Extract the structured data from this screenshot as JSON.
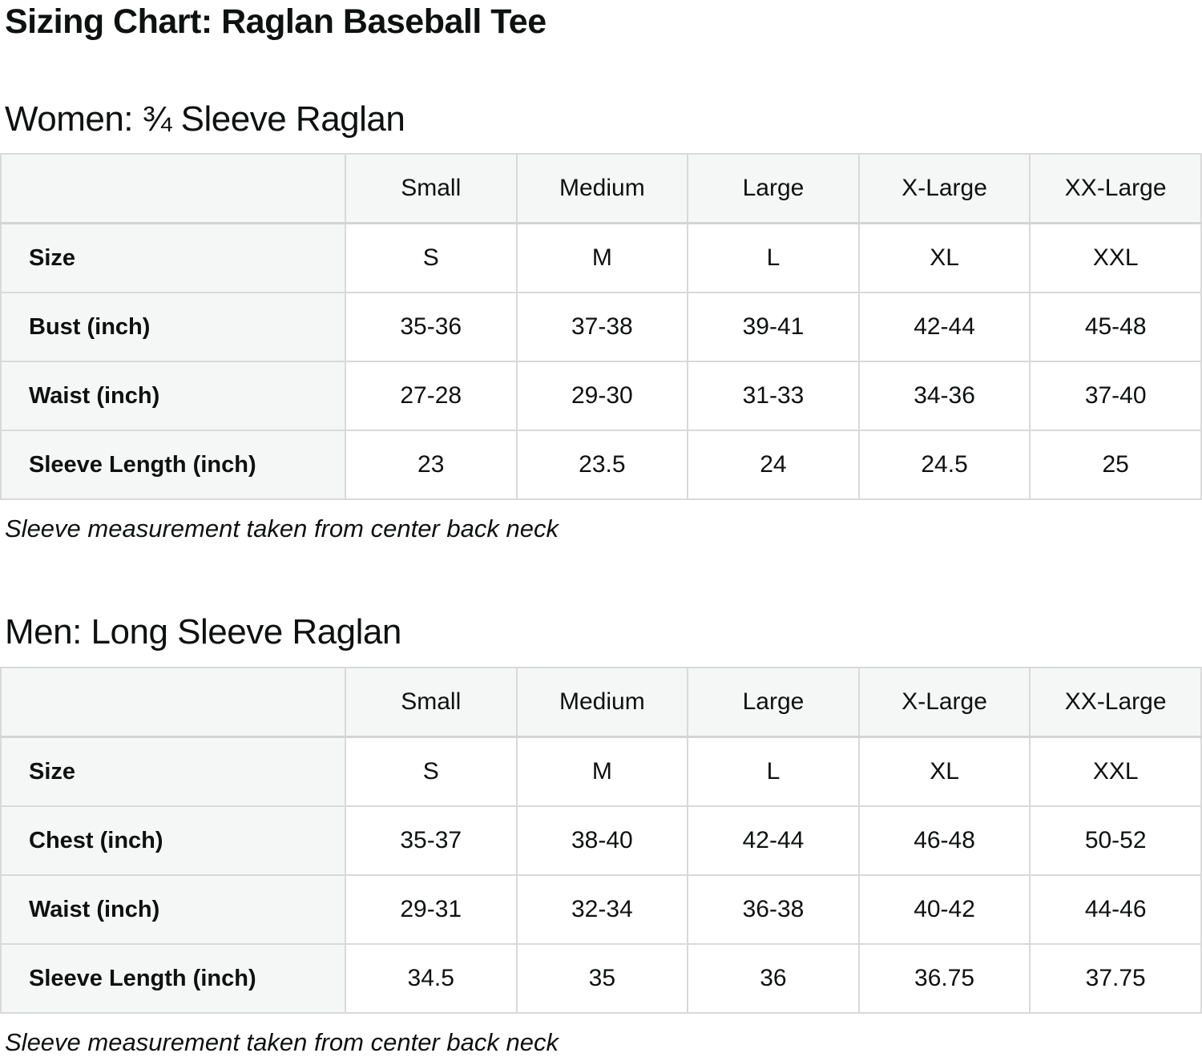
{
  "page": {
    "title": "Sizing Chart: Raglan Baseball Tee"
  },
  "colors": {
    "header_bg": "#f5f6f6",
    "border": "#d9d9d9",
    "text": "#0f1111",
    "background": "#ffffff"
  },
  "sections": [
    {
      "heading": "Women: ¾ Sleeve Raglan",
      "note": "Sleeve measurement taken from center back neck",
      "table": {
        "corner": "",
        "col_headers": [
          "Small",
          "Medium",
          "Large",
          "X-Large",
          "XX-Large"
        ],
        "rows": [
          {
            "label": "Size",
            "values": [
              "S",
              "M",
              "L",
              "XL",
              "XXL"
            ]
          },
          {
            "label": "Bust (inch)",
            "values": [
              "35-36",
              "37-38",
              "39-41",
              "42-44",
              "45-48"
            ]
          },
          {
            "label": "Waist (inch)",
            "values": [
              "27-28",
              "29-30",
              "31-33",
              "34-36",
              "37-40"
            ]
          },
          {
            "label": "Sleeve Length (inch)",
            "values": [
              "23",
              "23.5",
              "24",
              "24.5",
              "25"
            ]
          }
        ]
      }
    },
    {
      "heading": "Men: Long Sleeve Raglan",
      "note": "Sleeve measurement taken from center back neck",
      "table": {
        "corner": "",
        "col_headers": [
          "Small",
          "Medium",
          "Large",
          "X-Large",
          "XX-Large"
        ],
        "rows": [
          {
            "label": "Size",
            "values": [
              "S",
              "M",
              "L",
              "XL",
              "XXL"
            ]
          },
          {
            "label": "Chest (inch)",
            "values": [
              "35-37",
              "38-40",
              "42-44",
              "46-48",
              "50-52"
            ]
          },
          {
            "label": "Waist (inch)",
            "values": [
              "29-31",
              "32-34",
              "36-38",
              "40-42",
              "44-46"
            ]
          },
          {
            "label": "Sleeve Length (inch)",
            "values": [
              "34.5",
              "35",
              "36",
              "36.75",
              "37.75"
            ]
          }
        ]
      }
    }
  ]
}
